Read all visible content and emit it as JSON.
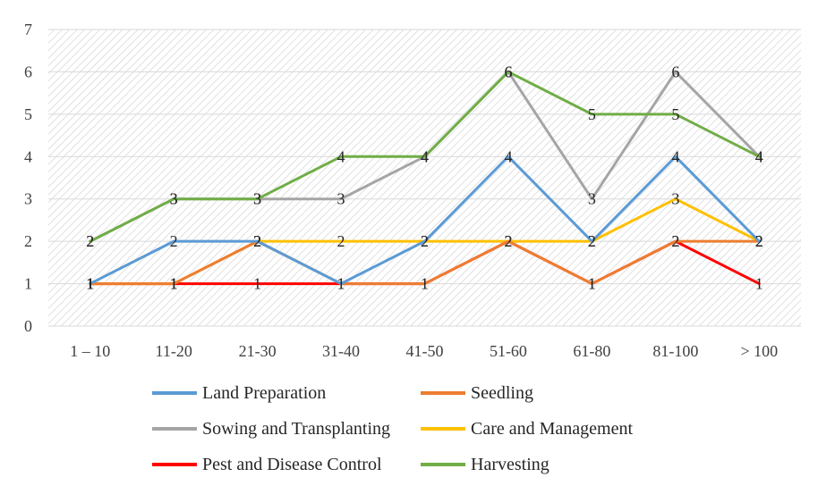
{
  "chart_data": {
    "type": "line",
    "title": "",
    "xlabel": "",
    "ylabel": "",
    "categories": [
      "1 – 10",
      "11-20",
      "21-30",
      "31-40",
      "41-50",
      "51-60",
      "61-80",
      "81-100",
      "> 100"
    ],
    "ylim": [
      0,
      7
    ],
    "yticks": [
      "0",
      "1",
      "2",
      "3",
      "4",
      "5",
      "6",
      "7"
    ],
    "grid": true,
    "legend_position": "bottom",
    "series": [
      {
        "name": "Land Preparation",
        "color": "#5b9bd5",
        "values": [
          1,
          2,
          2,
          1,
          2,
          4,
          2,
          4,
          2
        ]
      },
      {
        "name": "Seedling",
        "color": "#ed7d31",
        "values": [
          1,
          1,
          2,
          1,
          1,
          2,
          1,
          2,
          2
        ]
      },
      {
        "name": "Sowing and Transplanting",
        "color": "#a5a5a5",
        "values": [
          2,
          3,
          3,
          3,
          4,
          6,
          3,
          6,
          4
        ]
      },
      {
        "name": "Care and Management",
        "color": "#ffc000",
        "values": [
          1,
          1,
          2,
          2,
          2,
          2,
          2,
          3,
          2
        ]
      },
      {
        "name": "Pest and Disease Control",
        "color": "#ff0000",
        "values": [
          1,
          1,
          1,
          1,
          1,
          2,
          1,
          2,
          1
        ]
      },
      {
        "name": "Harvesting",
        "color": "#70ad47",
        "values": [
          2,
          3,
          3,
          4,
          4,
          6,
          5,
          5,
          4
        ]
      }
    ]
  }
}
